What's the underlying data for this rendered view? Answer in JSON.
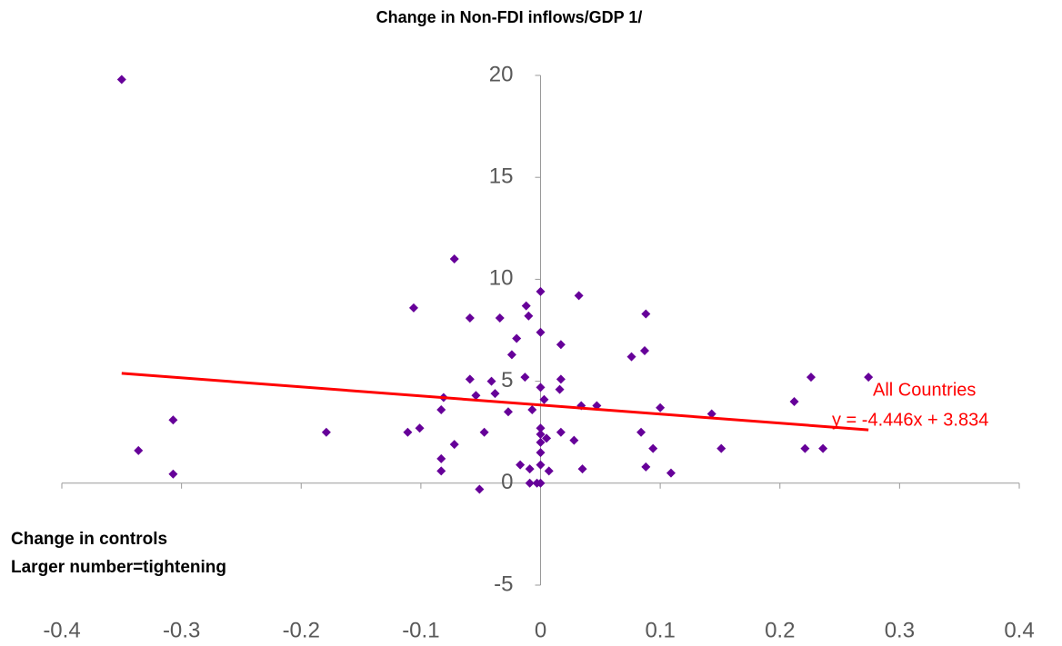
{
  "chart_data": {
    "type": "scatter",
    "title": "Change in Non-FDI inflows/GDP 1/",
    "x_label_lines": [
      "Change in controls",
      "Larger number=tightening"
    ],
    "x": [
      -0.35,
      -0.336,
      -0.307,
      -0.307,
      -0.179,
      -0.111,
      -0.106,
      -0.101,
      -0.083,
      -0.081,
      -0.083,
      -0.083,
      -0.072,
      -0.072,
      -0.059,
      -0.059,
      -0.054,
      -0.051,
      -0.047,
      -0.041,
      -0.038,
      -0.034,
      -0.027,
      -0.024,
      -0.02,
      -0.017,
      -0.013,
      -0.012,
      -0.01,
      -0.009,
      -0.009,
      -0.007,
      -0.003,
      0,
      0,
      0,
      0,
      0,
      0,
      0,
      0,
      0,
      0.003,
      0.005,
      0.007,
      0.017,
      0.017,
      0.016,
      0.017,
      0.028,
      0.032,
      0.034,
      0.035,
      0.047,
      0.076,
      0.084,
      0.087,
      0.088,
      0.088,
      0.094,
      0.1,
      0.109,
      0.143,
      0.151,
      0.212,
      0.221,
      0.226,
      0.236,
      0.274
    ],
    "y": [
      19.8,
      1.6,
      3.1,
      0.45,
      2.5,
      2.5,
      8.6,
      2.7,
      3.6,
      4.2,
      1.2,
      0.6,
      1.9,
      11.0,
      8.1,
      5.1,
      4.3,
      -0.3,
      2.5,
      5.0,
      4.4,
      8.1,
      3.5,
      6.3,
      7.1,
      0.9,
      5.2,
      8.7,
      8.2,
      0.7,
      0.0,
      3.6,
      0.0,
      4.7,
      7.4,
      9.4,
      2.7,
      2.4,
      2.0,
      1.5,
      0.9,
      0.0,
      4.1,
      2.2,
      0.6,
      6.8,
      5.1,
      4.6,
      2.5,
      2.1,
      9.2,
      3.8,
      0.7,
      3.8,
      6.2,
      2.5,
      6.5,
      8.3,
      0.8,
      1.7,
      3.7,
      0.5,
      3.4,
      1.7,
      4.0,
      1.7,
      5.2,
      1.7,
      5.2
    ],
    "color": "#660099",
    "trendline": {
      "name": "All Countries",
      "label": "y = -4.446x + 3.834",
      "slope": -4.446,
      "intercept": 3.834,
      "color": "#ff0000"
    },
    "xlim": [
      -0.4,
      0.4
    ],
    "xticks": [
      -0.4,
      -0.3,
      -0.2,
      -0.1,
      0,
      0.1,
      0.2,
      0.3,
      0.4
    ],
    "ylim": [
      -5,
      20
    ],
    "yticks": [
      -5,
      0,
      5,
      10,
      15,
      20
    ]
  }
}
